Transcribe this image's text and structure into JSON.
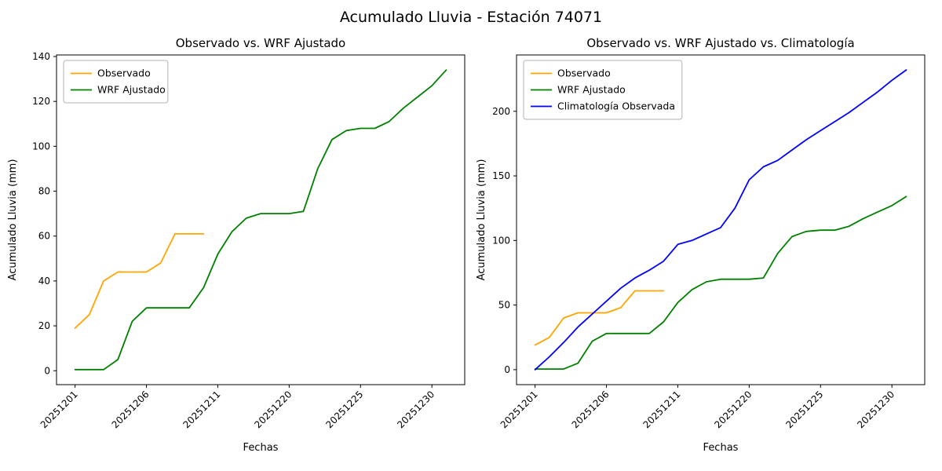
{
  "figure": {
    "title": "Acumulado Lluvia - Estación 74071"
  },
  "chart_data": [
    {
      "type": "line",
      "title": "Observado vs. WRF Ajustado",
      "xlabel": "Fechas",
      "ylabel": "Acumulado Lluvia (mm)",
      "grid": false,
      "legend_position": "upper-left",
      "xlim": [
        -1.3,
        27.3
      ],
      "ylim": [
        -6.2,
        140.7
      ],
      "y_ticks": [
        0,
        20,
        40,
        60,
        80,
        100,
        120,
        140
      ],
      "x_tick_positions": [
        0,
        5,
        10,
        15,
        20,
        25
      ],
      "x_tick_labels": [
        "20251201",
        "20251206",
        "20251211",
        "20251220",
        "20251225",
        "20251230"
      ],
      "series": [
        {
          "name": "Observado",
          "color": "#ffa500",
          "values": [
            19,
            25,
            40,
            44,
            44,
            44,
            48,
            61,
            61,
            61
          ]
        },
        {
          "name": "WRF Ajustado",
          "color": "#008000",
          "values": [
            0.5,
            0.5,
            0.5,
            5,
            22,
            28,
            28,
            28,
            28,
            37,
            52,
            62,
            68,
            70,
            70,
            70,
            71,
            90,
            103,
            107,
            108,
            108,
            111,
            117,
            122,
            127,
            134
          ]
        }
      ]
    },
    {
      "type": "line",
      "title": "Observado vs. WRF Ajustado vs. Climatología",
      "xlabel": "Fechas",
      "ylabel": "Acumulado Lluvia (mm)",
      "grid": false,
      "legend_position": "upper-left",
      "xlim": [
        -1.3,
        27.3
      ],
      "ylim": [
        -11.6,
        243.6
      ],
      "y_ticks": [
        0,
        50,
        100,
        150,
        200
      ],
      "x_tick_positions": [
        0,
        5,
        10,
        15,
        20,
        25
      ],
      "x_tick_labels": [
        "20251201",
        "20251206",
        "20251211",
        "20251220",
        "20251225",
        "20251230"
      ],
      "series": [
        {
          "name": "Observado",
          "color": "#ffa500",
          "values": [
            19,
            25,
            40,
            44,
            44,
            44,
            48,
            61,
            61,
            61
          ]
        },
        {
          "name": "WRF Ajustado",
          "color": "#008000",
          "values": [
            0.5,
            0.5,
            0.5,
            5,
            22,
            28,
            28,
            28,
            28,
            37,
            52,
            62,
            68,
            70,
            70,
            70,
            71,
            90,
            103,
            107,
            108,
            108,
            111,
            117,
            122,
            127,
            134
          ]
        },
        {
          "name": "Climatología Observada",
          "color": "#0000ff",
          "values": [
            0,
            10,
            21,
            33,
            43,
            53,
            63,
            71,
            77,
            84,
            97,
            100,
            105,
            110,
            125,
            147,
            157,
            162,
            170,
            178,
            185,
            192,
            199,
            207,
            215,
            224,
            232
          ]
        }
      ]
    }
  ]
}
